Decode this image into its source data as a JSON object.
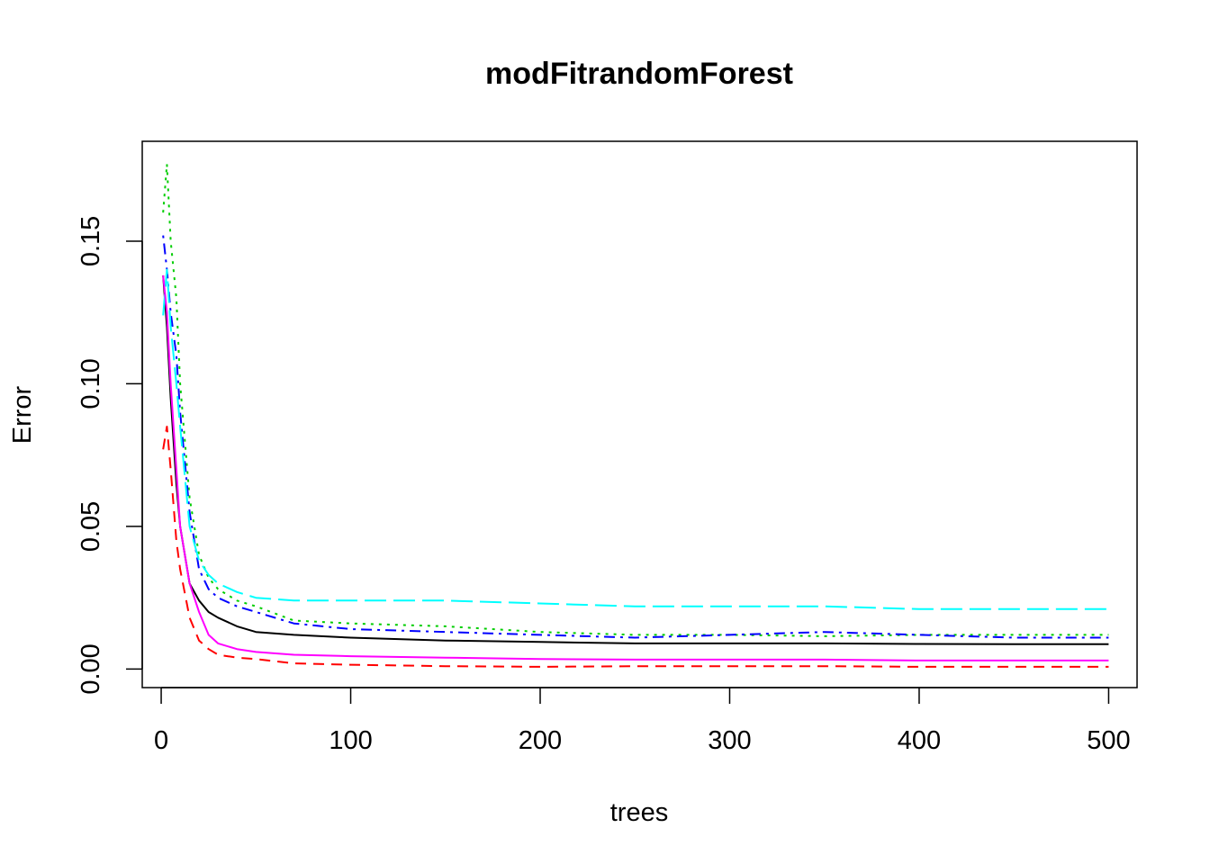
{
  "chart_data": {
    "type": "line",
    "title": "modFitrandomForest",
    "xlabel": "trees",
    "ylabel": "Error",
    "xlim": [
      -10,
      515
    ],
    "ylim": [
      -0.0065,
      0.185
    ],
    "xticks": [
      0,
      100,
      200,
      300,
      400,
      500
    ],
    "xtick_labels": [
      "0",
      "100",
      "200",
      "300",
      "400",
      "500"
    ],
    "yticks": [
      0.0,
      0.05,
      0.1,
      0.15
    ],
    "ytick_labels": [
      "0.00",
      "0.05",
      "0.10",
      "0.15"
    ],
    "grid": false,
    "legend": "none",
    "series": [
      {
        "color": "#000000",
        "dash": "solid",
        "x": [
          1,
          3,
          5,
          8,
          10,
          15,
          20,
          25,
          30,
          40,
          50,
          70,
          100,
          150,
          200,
          250,
          300,
          350,
          400,
          450,
          500
        ],
        "y": [
          0.138,
          0.12,
          0.095,
          0.065,
          0.05,
          0.03,
          0.024,
          0.02,
          0.018,
          0.015,
          0.013,
          0.012,
          0.011,
          0.01,
          0.0095,
          0.009,
          0.009,
          0.009,
          0.0088,
          0.0087,
          0.0087
        ]
      },
      {
        "color": "#ff0000",
        "dash": "dashed",
        "x": [
          1,
          3,
          5,
          8,
          10,
          15,
          20,
          25,
          30,
          40,
          50,
          70,
          100,
          150,
          200,
          250,
          300,
          350,
          400,
          450,
          500
        ],
        "y": [
          0.077,
          0.085,
          0.07,
          0.045,
          0.035,
          0.018,
          0.01,
          0.007,
          0.005,
          0.004,
          0.0035,
          0.002,
          0.0015,
          0.001,
          0.0008,
          0.001,
          0.001,
          0.001,
          0.0008,
          0.0008,
          0.0008
        ]
      },
      {
        "color": "#00cd00",
        "dash": "dotted",
        "x": [
          1,
          3,
          5,
          8,
          10,
          15,
          20,
          25,
          30,
          40,
          50,
          70,
          100,
          150,
          200,
          250,
          300,
          350,
          400,
          450,
          500
        ],
        "y": [
          0.16,
          0.177,
          0.15,
          0.13,
          0.1,
          0.06,
          0.04,
          0.032,
          0.028,
          0.024,
          0.022,
          0.017,
          0.016,
          0.015,
          0.013,
          0.012,
          0.012,
          0.0115,
          0.012,
          0.012,
          0.012
        ]
      },
      {
        "color": "#0000ff",
        "dash": "dotdash",
        "x": [
          1,
          3,
          5,
          8,
          10,
          15,
          20,
          25,
          30,
          40,
          50,
          70,
          100,
          150,
          200,
          250,
          300,
          350,
          400,
          450,
          500
        ],
        "y": [
          0.152,
          0.14,
          0.125,
          0.11,
          0.09,
          0.055,
          0.035,
          0.028,
          0.025,
          0.022,
          0.02,
          0.016,
          0.014,
          0.013,
          0.012,
          0.011,
          0.012,
          0.013,
          0.012,
          0.011,
          0.011
        ]
      },
      {
        "color": "#00ffff",
        "dash": "longdash",
        "x": [
          1,
          3,
          5,
          8,
          10,
          15,
          20,
          25,
          30,
          40,
          50,
          70,
          100,
          150,
          200,
          250,
          300,
          350,
          400,
          450,
          500
        ],
        "y": [
          0.124,
          0.14,
          0.12,
          0.1,
          0.085,
          0.05,
          0.038,
          0.033,
          0.03,
          0.027,
          0.025,
          0.024,
          0.024,
          0.024,
          0.023,
          0.022,
          0.022,
          0.022,
          0.021,
          0.021,
          0.021
        ]
      },
      {
        "color": "#ff00ff",
        "dash": "solid",
        "x": [
          1,
          3,
          5,
          8,
          10,
          15,
          20,
          25,
          30,
          40,
          50,
          70,
          100,
          150,
          200,
          250,
          300,
          350,
          400,
          450,
          500
        ],
        "y": [
          0.138,
          0.125,
          0.1,
          0.07,
          0.05,
          0.03,
          0.02,
          0.012,
          0.009,
          0.007,
          0.006,
          0.005,
          0.0045,
          0.004,
          0.0035,
          0.0033,
          0.0033,
          0.0033,
          0.003,
          0.003,
          0.003
        ]
      }
    ]
  }
}
